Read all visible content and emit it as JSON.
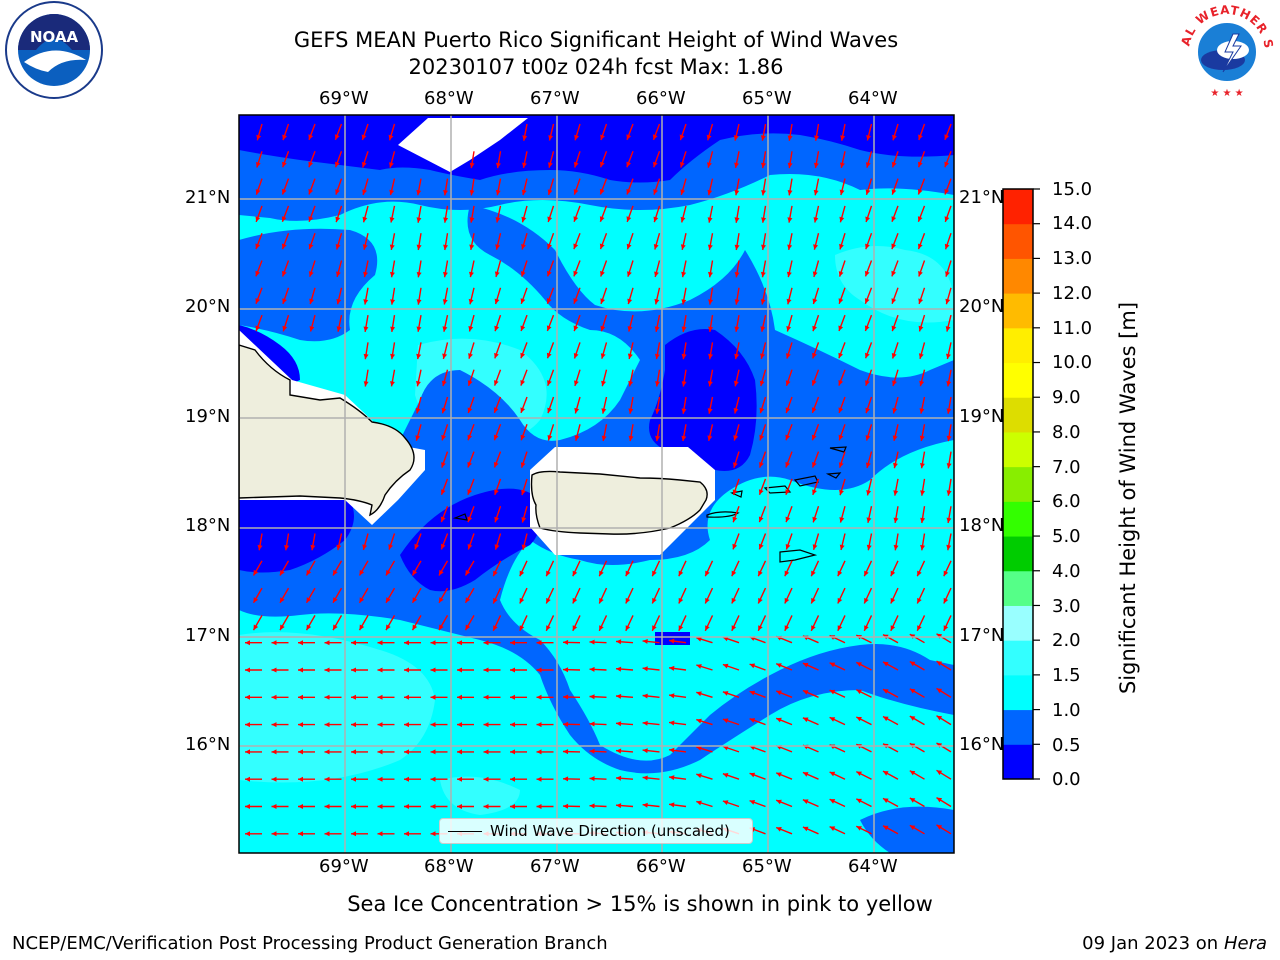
{
  "title_line1": "GEFS MEAN Puerto Rico Significant Height of Wind Waves",
  "title_line2": "20230107 t00z 024h fcst   Max: 1.86",
  "lon_labels": [
    "69°W",
    "68°W",
    "67°W",
    "66°W",
    "65°W",
    "64°W"
  ],
  "lat_labels": [
    "21°N",
    "20°N",
    "19°N",
    "18°N",
    "17°N",
    "16°N"
  ],
  "colorbar": {
    "label": "Significant Height of Wind Waves [m]",
    "ticks": [
      "15.0",
      "14.0",
      "13.0",
      "12.0",
      "11.0",
      "10.0",
      "9.0",
      "8.0",
      "7.0",
      "6.0",
      "5.0",
      "4.0",
      "3.0",
      "2.0",
      "1.5",
      "1.0",
      "0.5",
      "0.0"
    ],
    "colors": [
      "#0000ff",
      "#0066ff",
      "#00ffff",
      "#33ffff",
      "#99ffff",
      "#55ff88",
      "#00cc00",
      "#33ff00",
      "#88ee00",
      "#ccff00",
      "#dddd00",
      "#ffff00",
      "#ffee00",
      "#ffbb00",
      "#ff8800",
      "#ff5500",
      "#ff2200"
    ]
  },
  "legend": {
    "label": "Wind Wave Direction (unscaled)"
  },
  "note": "Sea Ice Concentration > 15% is shown in pink to yellow",
  "footer_left": "NCEP/EMC/Verification Post Processing Product Generation Branch",
  "footer_date": "09 Jan 2023 on ",
  "footer_machine": "Hera",
  "logos": {
    "noaa_text": "NOAA",
    "nws_text": "NATIONAL WEATHER SERVICE"
  },
  "map_colors": {
    "deep_blue": "#0000ff",
    "blue": "#0066ff",
    "cyan": "#00ffff",
    "light_cyan": "#33ffff",
    "land": "#eeeedd",
    "arrow": "#ff0000"
  }
}
